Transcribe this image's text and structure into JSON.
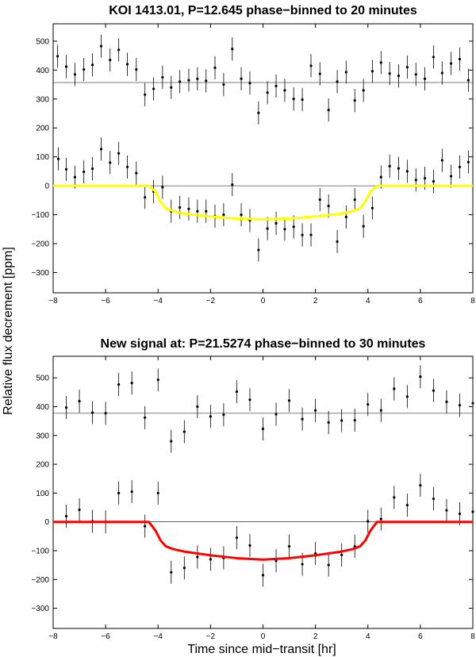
{
  "ylabel": "Relative flux decrement [ppm]",
  "xlabel": "Time since mid−transit [hr]",
  "chart_data": [
    {
      "type": "scatter",
      "title": "KOI 1413.01, P=12.645 phase−binned to 20 minutes",
      "xlim": [
        -8,
        8
      ],
      "ylim": [
        -370,
        560
      ],
      "xticks": [
        -8,
        -6,
        -4,
        -2,
        0,
        2,
        4,
        6,
        8
      ],
      "yticks": [
        -300,
        -200,
        -100,
        0,
        100,
        200,
        300,
        400,
        500
      ],
      "offset_line": 357,
      "model_color": "#ffff00",
      "model": {
        "x": [
          -8,
          -4.35,
          -4.1,
          -3.9,
          -3.7,
          -3.4,
          -3,
          -2,
          -1,
          0,
          1,
          2,
          3,
          3.4,
          3.7,
          3.9,
          4.1,
          4.35,
          8
        ],
        "y": [
          0,
          0,
          -20,
          -55,
          -78,
          -88,
          -96,
          -106,
          -113,
          -116,
          -113,
          -106,
          -96,
          -88,
          -78,
          -55,
          -20,
          0,
          0
        ]
      },
      "series": [
        {
          "x": [
            -7.8,
            -7.5,
            -7.17,
            -6.83,
            -6.5,
            -6.17,
            -5.83,
            -5.5,
            -5.17,
            -4.83,
            -4.5,
            -4.17,
            -3.83,
            -3.5,
            -3.17,
            -2.83,
            -2.5,
            -2.17,
            -1.83,
            -1.5,
            -1.17,
            -0.83,
            -0.5,
            -0.17,
            0.17,
            0.5,
            0.83,
            1.17,
            1.5,
            1.83,
            2.17,
            2.5,
            2.83,
            3.17,
            3.5,
            3.83,
            4.17,
            4.5,
            4.83,
            5.17,
            5.5,
            5.83,
            6.17,
            6.5,
            6.83,
            7.17,
            7.5,
            7.83
          ],
          "y": [
            93,
            57,
            30,
            48,
            59,
            127,
            80,
            112,
            65,
            44,
            -40,
            -20,
            -5,
            -88,
            -75,
            -80,
            -88,
            -88,
            -105,
            -100,
            4,
            -100,
            -120,
            -222,
            -148,
            -130,
            -150,
            -142,
            -170,
            -170,
            -48,
            -70,
            -193,
            -108,
            -48,
            -140,
            -77,
            30,
            68,
            60,
            50,
            20,
            26,
            15,
            88,
            33,
            65,
            82
          ],
          "err": [
            40,
            40,
            40,
            40,
            40,
            40,
            40,
            40,
            40,
            40,
            40,
            40,
            40,
            40,
            40,
            40,
            40,
            40,
            40,
            40,
            40,
            40,
            40,
            40,
            40,
            40,
            40,
            40,
            40,
            40,
            40,
            40,
            40,
            40,
            40,
            40,
            40,
            40,
            40,
            40,
            40,
            40,
            40,
            40,
            40,
            40,
            40,
            40
          ]
        },
        {
          "x": [
            -7.83,
            -7.5,
            -7.17,
            -6.83,
            -6.5,
            -6.17,
            -5.83,
            -5.5,
            -5.17,
            -4.83,
            -4.5,
            -4.17,
            -3.83,
            -3.5,
            -3.17,
            -2.83,
            -2.5,
            -2.17,
            -1.83,
            -1.5,
            -1.17,
            -0.83,
            -0.5,
            -0.17,
            0.17,
            0.5,
            0.83,
            1.17,
            1.5,
            1.83,
            2.17,
            2.5,
            2.83,
            3.17,
            3.5,
            3.83,
            4.17,
            4.5,
            4.83,
            5.17,
            5.5,
            5.83,
            6.17,
            6.5,
            6.83,
            7.17,
            7.5,
            7.83
          ],
          "y": [
            448,
            412,
            385,
            402,
            418,
            483,
            435,
            470,
            420,
            402,
            315,
            335,
            375,
            340,
            360,
            365,
            370,
            363,
            408,
            350,
            473,
            370,
            355,
            252,
            322,
            345,
            330,
            300,
            298,
            415,
            387,
            262,
            360,
            393,
            295,
            330,
            396,
            426,
            388,
            380,
            410,
            385,
            370,
            445,
            390,
            423,
            438,
            365
          ],
          "err": [
            40,
            40,
            40,
            40,
            40,
            40,
            40,
            40,
            40,
            40,
            40,
            40,
            40,
            40,
            40,
            40,
            40,
            40,
            40,
            40,
            40,
            40,
            40,
            40,
            40,
            40,
            40,
            40,
            40,
            40,
            40,
            40,
            40,
            40,
            40,
            40,
            40,
            40,
            40,
            40,
            40,
            40,
            40,
            40,
            40,
            40,
            40,
            40
          ]
        }
      ]
    },
    {
      "type": "scatter",
      "title": "New signal at: P=21.5274 phase−binned to 30 minutes",
      "xlim": [
        -8,
        8
      ],
      "ylim": [
        -370,
        575
      ],
      "xticks": [
        -8,
        -6,
        -4,
        -2,
        0,
        2,
        4,
        6,
        8
      ],
      "yticks": [
        -300,
        -200,
        -100,
        0,
        100,
        200,
        300,
        400,
        500
      ],
      "offset_line": 377,
      "model_color": "#ff0000",
      "model": {
        "x": [
          -8,
          -4.35,
          -4.1,
          -3.9,
          -3.7,
          -3.4,
          -3,
          -2,
          -1,
          0,
          1,
          2,
          3,
          3.4,
          3.7,
          3.9,
          4.1,
          4.35,
          8
        ],
        "y": [
          0,
          0,
          -30,
          -65,
          -85,
          -95,
          -103,
          -116,
          -126,
          -131,
          -126,
          -116,
          -103,
          -95,
          -85,
          -65,
          -30,
          0,
          0
        ]
      },
      "series": [
        {
          "x": [
            -7.5,
            -7,
            -6.5,
            -6,
            -5.5,
            -5,
            -4.5,
            -4,
            -3.5,
            -3,
            -2.5,
            -2,
            -1.5,
            -1,
            -0.5,
            0,
            0.5,
            1,
            1.5,
            2,
            2.5,
            3,
            3.5,
            4,
            4.5,
            5,
            5.5,
            6,
            6.5,
            7,
            7.5,
            8
          ],
          "y": [
            20,
            42,
            2,
            0,
            100,
            105,
            -15,
            100,
            -175,
            -160,
            -122,
            -130,
            -125,
            -55,
            -82,
            -185,
            -135,
            -85,
            -147,
            -110,
            -150,
            -115,
            -85,
            2,
            10,
            85,
            58,
            127,
            80,
            40,
            28,
            35
          ],
          "err": [
            40,
            40,
            40,
            40,
            40,
            40,
            40,
            40,
            40,
            40,
            40,
            40,
            40,
            40,
            40,
            40,
            40,
            40,
            40,
            40,
            40,
            40,
            40,
            40,
            40,
            40,
            40,
            40,
            40,
            40,
            40,
            40
          ]
        },
        {
          "x": [
            -7.5,
            -7,
            -6.5,
            -6,
            -5.5,
            -5,
            -4.5,
            -4,
            -3.5,
            -3,
            -2.5,
            -2,
            -1.5,
            -1,
            -0.5,
            0,
            0.5,
            1,
            1.5,
            2,
            2.5,
            3,
            3.5,
            4,
            4.5,
            5,
            5.5,
            6,
            6.5,
            7,
            7.5,
            8
          ],
          "y": [
            397,
            419,
            379,
            377,
            477,
            482,
            362,
            493,
            280,
            313,
            400,
            366,
            372,
            452,
            424,
            323,
            374,
            421,
            357,
            387,
            345,
            352,
            353,
            408,
            387,
            462,
            435,
            504,
            456,
            417,
            405,
            412
          ],
          "err": [
            40,
            40,
            40,
            40,
            40,
            40,
            40,
            40,
            40,
            40,
            40,
            40,
            40,
            40,
            40,
            40,
            40,
            40,
            40,
            40,
            40,
            40,
            40,
            40,
            40,
            40,
            40,
            40,
            40,
            40,
            40,
            40
          ]
        }
      ]
    }
  ]
}
